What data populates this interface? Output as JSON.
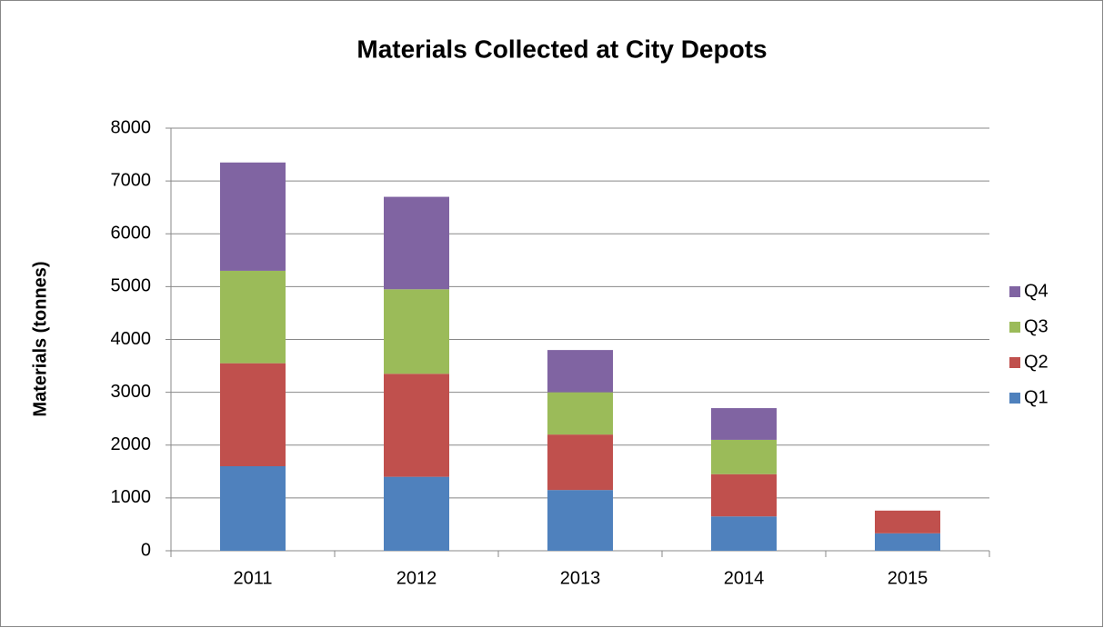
{
  "chart_data": {
    "type": "bar",
    "stacked": true,
    "title": "Materials Collected at City Depots",
    "y_label": "Materials (tonnes)",
    "categories": [
      "2011",
      "2012",
      "2013",
      "2014",
      "2015"
    ],
    "series": [
      {
        "name": "Q1",
        "color": "#4f81bd",
        "values": [
          1600,
          1400,
          1150,
          650,
          330
        ]
      },
      {
        "name": "Q2",
        "color": "#c0504d",
        "values": [
          1950,
          1950,
          1050,
          800,
          430
        ]
      },
      {
        "name": "Q3",
        "color": "#9bbb59",
        "values": [
          1750,
          1600,
          800,
          650,
          null
        ]
      },
      {
        "name": "Q4",
        "color": "#8064a2",
        "values": [
          2050,
          1750,
          800,
          600,
          null
        ]
      }
    ],
    "ylim": [
      0,
      8000
    ],
    "yticks": [
      0,
      1000,
      2000,
      3000,
      4000,
      5000,
      6000,
      7000,
      8000
    ],
    "grid": true,
    "legend": "right"
  }
}
